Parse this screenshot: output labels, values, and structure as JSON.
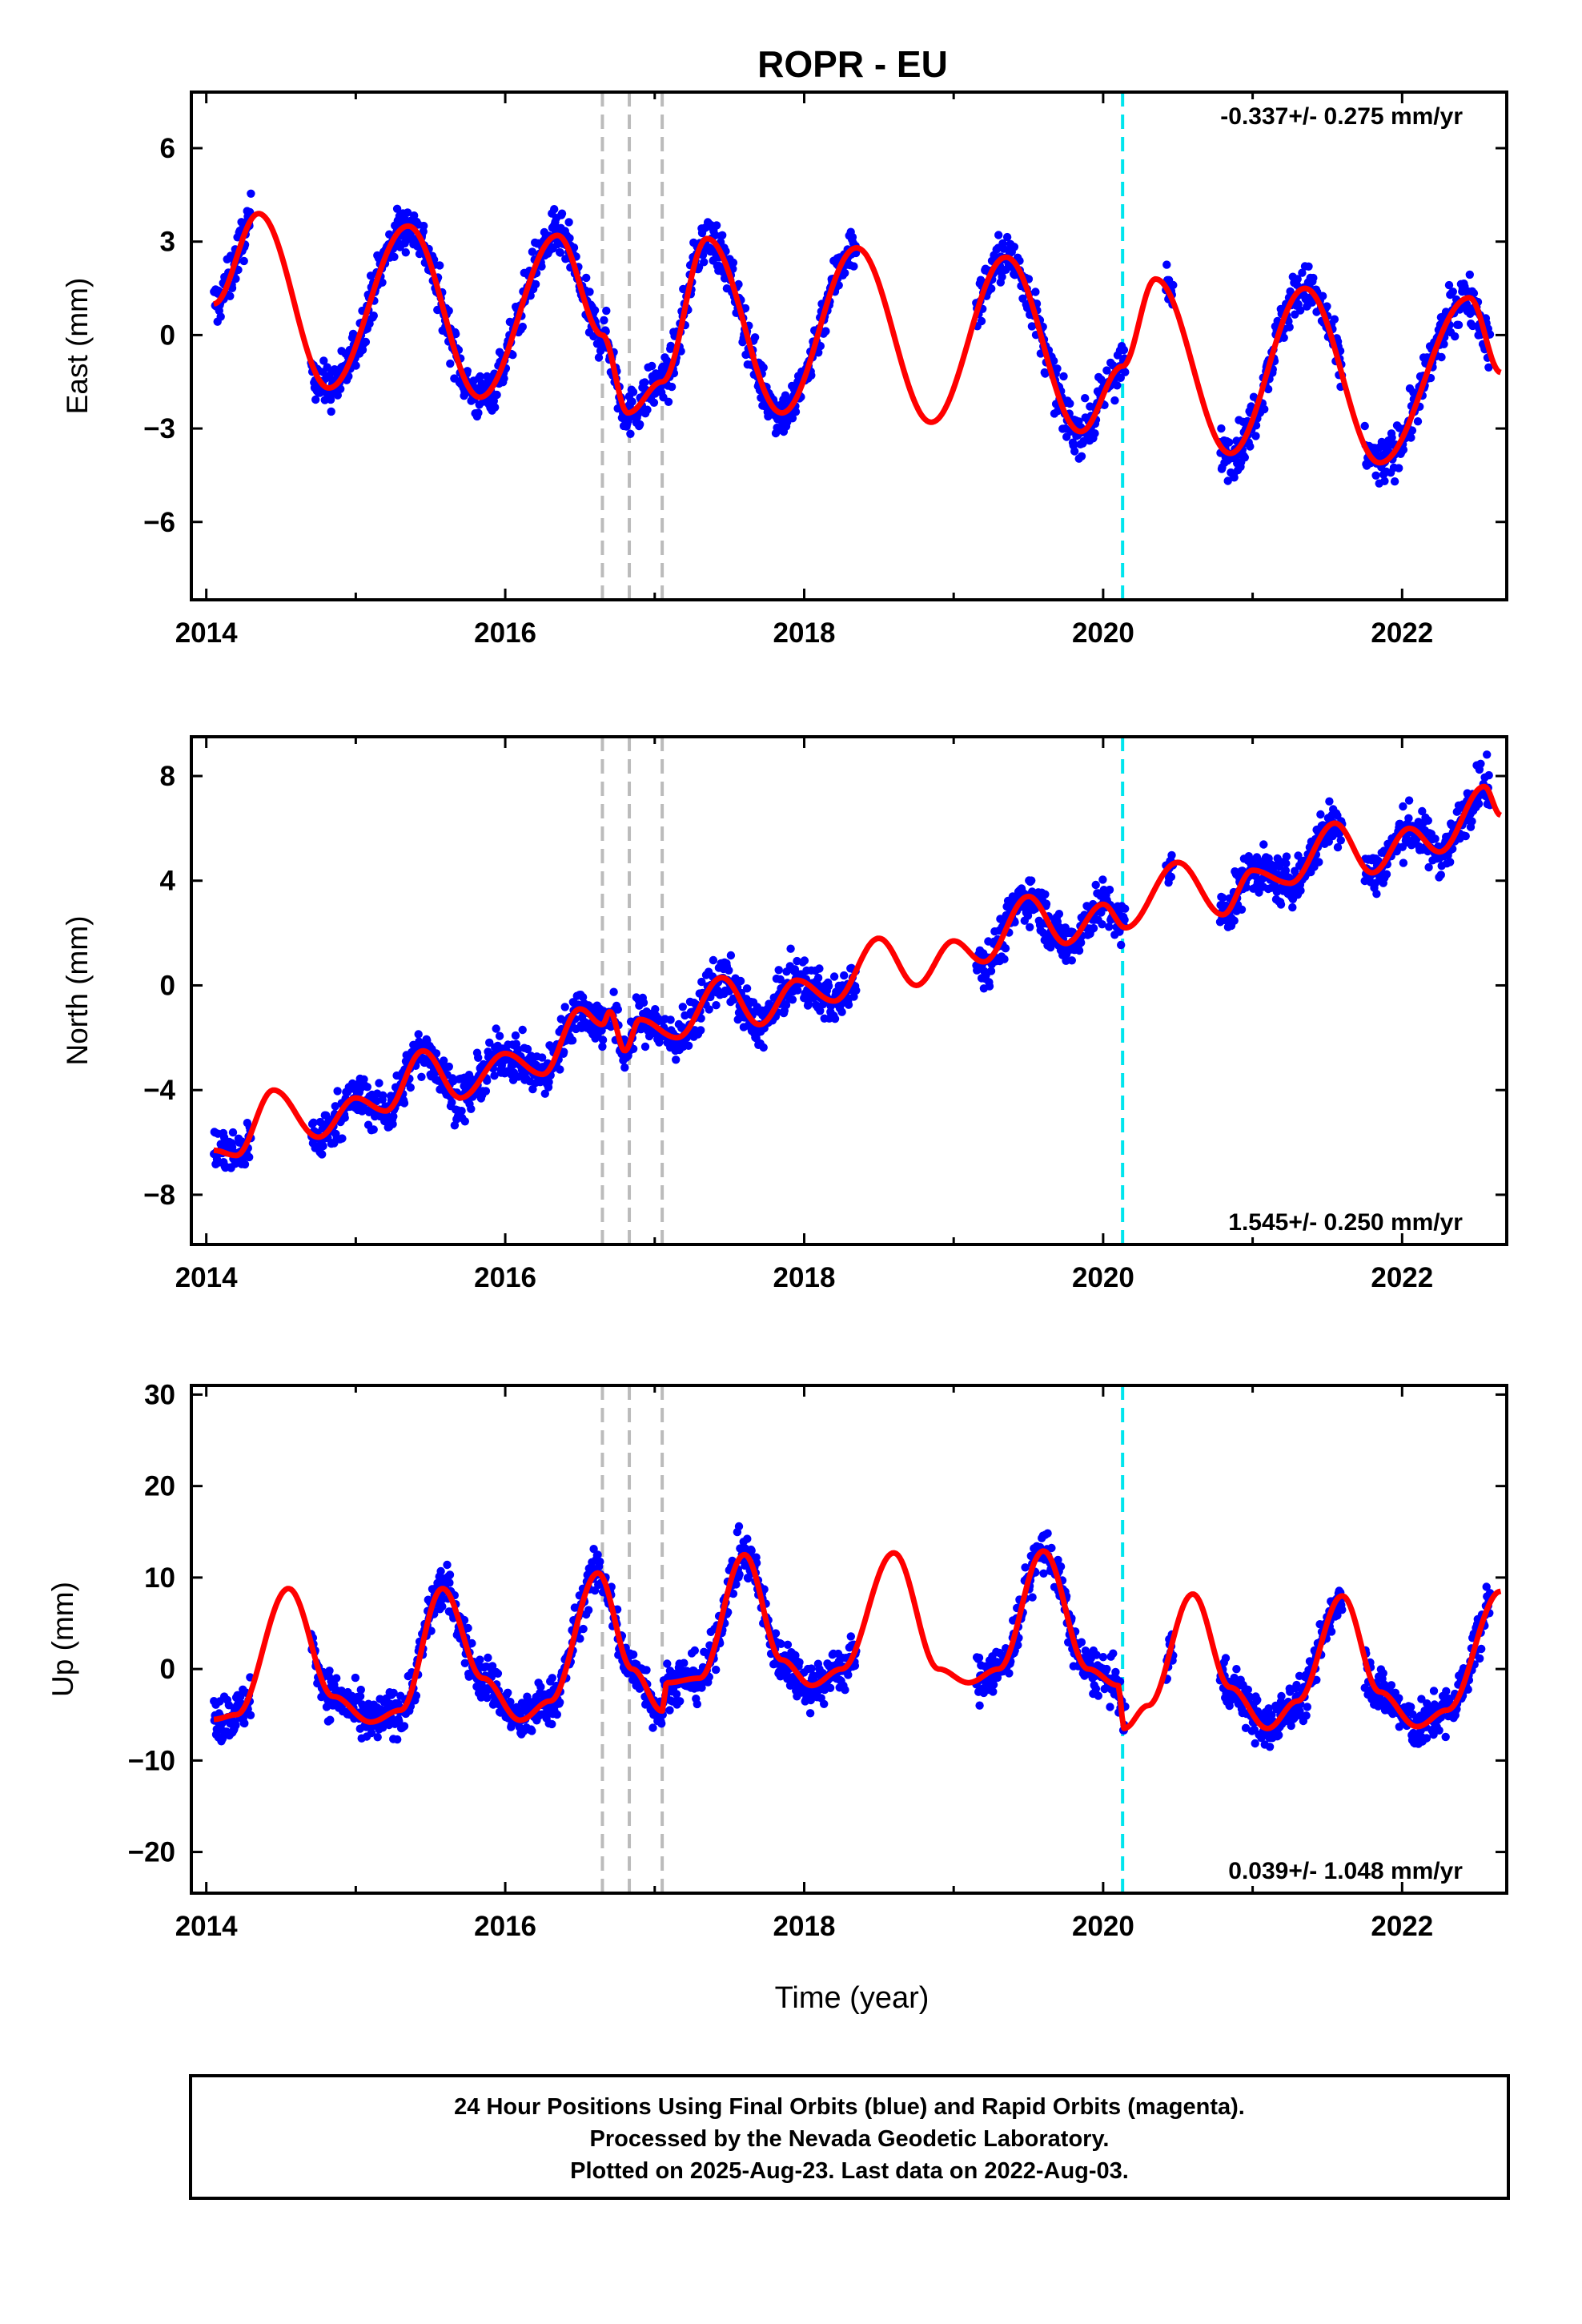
{
  "title": "ROPR - EU",
  "xlabel": "Time (year)",
  "x_ticks": [
    "2014",
    "2016",
    "2018",
    "2020",
    "2022"
  ],
  "footer": {
    "line1": "24 Hour Positions Using Final Orbits (blue) and Rapid Orbits (magenta).",
    "line2": "Processed by the Nevada Geodetic Laboratory.",
    "line3": "Plotted on 2025-Aug-23. Last data on 2022-Aug-03."
  },
  "colors": {
    "data": "#0000ff",
    "model": "#ff0000",
    "equipment_change": "#bbbbbb",
    "earthquake": "#00e5ee"
  },
  "chart_data": [
    {
      "type": "scatter",
      "ylabel": "East (mm)",
      "rate": "-0.337+/- 0.275 mm/yr",
      "rate_position": "top-right",
      "xlim": [
        2013.9,
        2022.7
      ],
      "ylim": [
        -8.5,
        7.8
      ],
      "yticks": [
        "6",
        "3",
        "0",
        "-3",
        "-6"
      ],
      "vlines_gray": [
        2016.65,
        2016.83,
        2017.05
      ],
      "vline_cyan": [
        2020.13
      ],
      "data_segments": [
        [
          2014.05,
          2014.3
        ],
        [
          2014.7,
          2016.66
        ],
        [
          2016.66,
          2017.97
        ],
        [
          2017.97,
          2018.35
        ],
        [
          2019.15,
          2020.15
        ],
        [
          2020.42,
          2020.47
        ],
        [
          2020.78,
          2021.6
        ],
        [
          2021.75,
          2022.59
        ]
      ],
      "series": [
        {
          "name": "model",
          "knots": [
            [
              2014.05,
              1.0
            ],
            [
              2014.35,
              3.9
            ],
            [
              2014.82,
              -1.7
            ],
            [
              2015.35,
              3.5
            ],
            [
              2015.83,
              -2.0
            ],
            [
              2016.35,
              3.2
            ],
            [
              2016.65,
              0.0
            ],
            [
              2016.82,
              -2.5
            ],
            [
              2017.05,
              -1.5
            ],
            [
              2017.35,
              3.1
            ],
            [
              2017.85,
              -2.5
            ],
            [
              2018.35,
              2.8
            ],
            [
              2018.85,
              -2.8
            ],
            [
              2019.35,
              2.5
            ],
            [
              2019.85,
              -3.1
            ],
            [
              2020.13,
              -1.0
            ],
            [
              2020.35,
              1.8
            ],
            [
              2020.85,
              -3.8
            ],
            [
              2021.35,
              1.5
            ],
            [
              2021.85,
              -4.1
            ],
            [
              2022.45,
              1.2
            ],
            [
              2022.66,
              -1.2
            ]
          ]
        }
      ]
    },
    {
      "type": "scatter",
      "ylabel": "North (mm)",
      "rate": "1.545+/- 0.250 mm/yr",
      "rate_position": "bottom-right",
      "xlim": [
        2013.9,
        2022.7
      ],
      "ylim": [
        -9.9,
        9.5
      ],
      "yticks": [
        "8",
        "4",
        "0",
        "-4",
        "-8"
      ],
      "vlines_gray": [
        2016.65,
        2016.83,
        2017.05
      ],
      "vline_cyan": [
        2020.13
      ],
      "data_segments": [
        [
          2014.05,
          2014.3
        ],
        [
          2014.7,
          2016.66
        ],
        [
          2016.66,
          2017.97
        ],
        [
          2017.97,
          2018.35
        ],
        [
          2019.15,
          2020.15
        ],
        [
          2020.42,
          2020.47
        ],
        [
          2020.78,
          2021.6
        ],
        [
          2021.75,
          2022.59
        ]
      ],
      "series": [
        {
          "name": "model",
          "knots": [
            [
              2014.05,
              -6.3
            ],
            [
              2014.2,
              -6.5
            ],
            [
              2014.45,
              -4.0
            ],
            [
              2014.75,
              -5.8
            ],
            [
              2015.0,
              -4.3
            ],
            [
              2015.2,
              -4.8
            ],
            [
              2015.45,
              -2.5
            ],
            [
              2015.7,
              -4.3
            ],
            [
              2016.0,
              -2.6
            ],
            [
              2016.25,
              -3.4
            ],
            [
              2016.5,
              -0.9
            ],
            [
              2016.65,
              -1.5
            ],
            [
              2016.7,
              -1.0
            ],
            [
              2016.8,
              -2.5
            ],
            [
              2016.9,
              -1.3
            ],
            [
              2017.15,
              -2.0
            ],
            [
              2017.45,
              0.3
            ],
            [
              2017.7,
              -1.5
            ],
            [
              2017.95,
              0.2
            ],
            [
              2018.2,
              -0.6
            ],
            [
              2018.5,
              1.8
            ],
            [
              2018.75,
              0.0
            ],
            [
              2019.0,
              1.7
            ],
            [
              2019.2,
              0.9
            ],
            [
              2019.5,
              3.4
            ],
            [
              2019.75,
              1.6
            ],
            [
              2020.0,
              3.1
            ],
            [
              2020.15,
              2.2
            ],
            [
              2020.5,
              4.7
            ],
            [
              2020.8,
              2.7
            ],
            [
              2021.0,
              4.4
            ],
            [
              2021.25,
              3.9
            ],
            [
              2021.55,
              6.2
            ],
            [
              2021.8,
              4.3
            ],
            [
              2022.05,
              6.0
            ],
            [
              2022.25,
              5.1
            ],
            [
              2022.55,
              7.6
            ],
            [
              2022.66,
              6.5
            ]
          ]
        }
      ]
    },
    {
      "type": "scatter",
      "ylabel": "Up (mm)",
      "rate": "0.039+/- 1.048 mm/yr",
      "rate_position": "bottom-right",
      "xlim": [
        2013.9,
        2022.7
      ],
      "ylim": [
        -24.5,
        31
      ],
      "yticks": [
        "30",
        "20",
        "10",
        "0",
        "-10",
        "-20"
      ],
      "vlines_gray": [
        2016.65,
        2016.83,
        2017.05
      ],
      "vline_cyan": [
        2020.13
      ],
      "data_segments": [
        [
          2014.05,
          2014.3
        ],
        [
          2014.7,
          2016.66
        ],
        [
          2016.66,
          2017.97
        ],
        [
          2017.97,
          2018.35
        ],
        [
          2019.15,
          2020.15
        ],
        [
          2020.42,
          2020.47
        ],
        [
          2020.78,
          2021.6
        ],
        [
          2021.75,
          2022.59
        ]
      ],
      "series": [
        {
          "name": "model",
          "knots": [
            [
              2014.05,
              -5.5
            ],
            [
              2014.2,
              -5.0
            ],
            [
              2014.55,
              8.8
            ],
            [
              2014.85,
              -3.0
            ],
            [
              2015.1,
              -5.8
            ],
            [
              2015.3,
              -4.5
            ],
            [
              2015.58,
              8.8
            ],
            [
              2015.85,
              -1.0
            ],
            [
              2016.1,
              -5.6
            ],
            [
              2016.3,
              -3.5
            ],
            [
              2016.62,
              10.5
            ],
            [
              2016.85,
              0.0
            ],
            [
              2017.05,
              -4.6
            ],
            [
              2017.08,
              -1.5
            ],
            [
              2017.3,
              -1.0
            ],
            [
              2017.6,
              12.5
            ],
            [
              2017.85,
              1.0
            ],
            [
              2018.05,
              -1.8
            ],
            [
              2018.25,
              0.0
            ],
            [
              2018.6,
              12.7
            ],
            [
              2018.9,
              0.0
            ],
            [
              2019.1,
              -1.5
            ],
            [
              2019.3,
              0.0
            ],
            [
              2019.6,
              12.9
            ],
            [
              2019.9,
              0.0
            ],
            [
              2020.1,
              -1.8
            ],
            [
              2020.14,
              -6.5
            ],
            [
              2020.3,
              -4.0
            ],
            [
              2020.6,
              8.2
            ],
            [
              2020.85,
              -2.0
            ],
            [
              2021.1,
              -6.5
            ],
            [
              2021.3,
              -3.5
            ],
            [
              2021.6,
              8.0
            ],
            [
              2021.85,
              -2.5
            ],
            [
              2022.1,
              -6.3
            ],
            [
              2022.3,
              -4.5
            ],
            [
              2022.66,
              8.5
            ]
          ]
        }
      ]
    }
  ]
}
